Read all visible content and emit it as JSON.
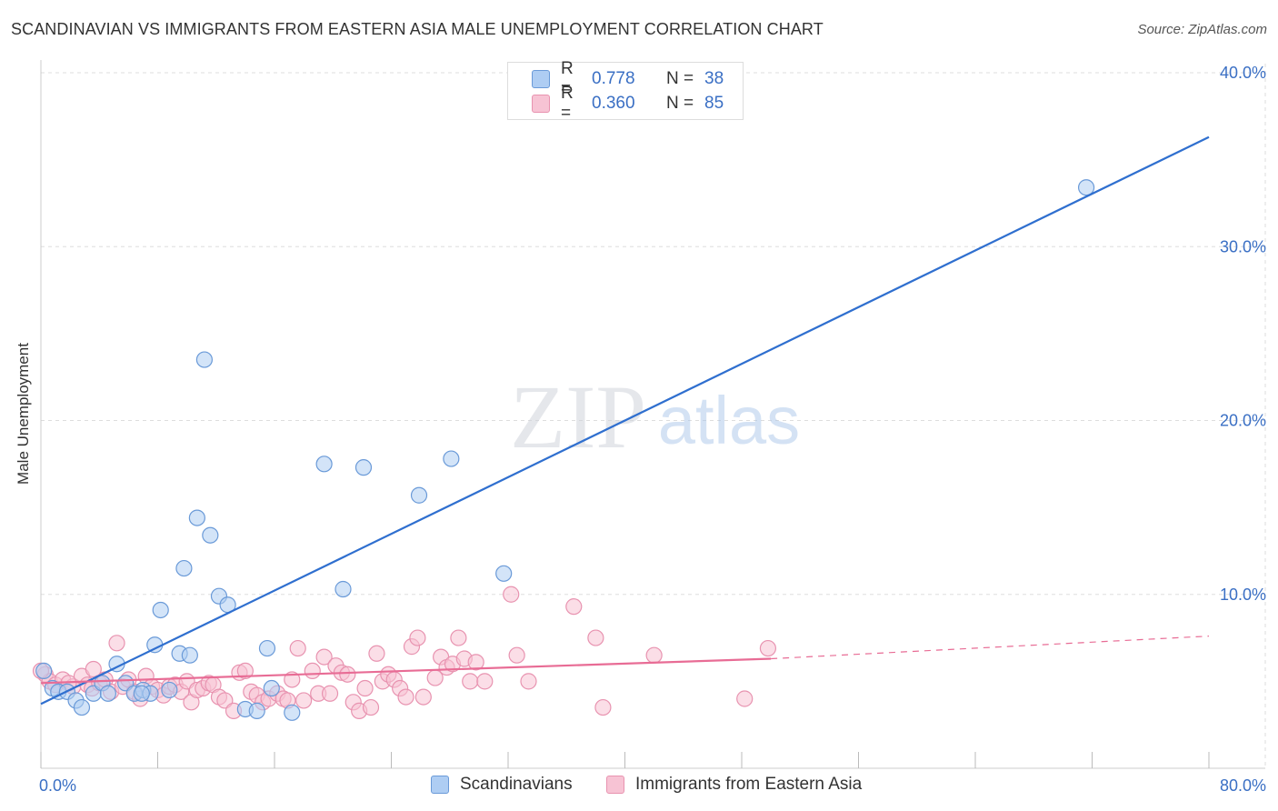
{
  "header": {
    "title": "SCANDINAVIAN VS IMMIGRANTS FROM EASTERN ASIA MALE UNEMPLOYMENT CORRELATION CHART",
    "source": "Source: ZipAtlas.com"
  },
  "watermark": {
    "zip": "ZIP",
    "atlas": "atlas"
  },
  "legend_top": {
    "rows": [
      {
        "r_label": "R =",
        "r_value": "0.778",
        "n_label": "N =",
        "n_value": "38"
      },
      {
        "r_label": "R =",
        "r_value": "0.360",
        "n_label": "N =",
        "n_value": "85"
      }
    ]
  },
  "legend_bottom": {
    "items": [
      {
        "label": "Scandinavians"
      },
      {
        "label": "Immigrants from Eastern Asia"
      }
    ]
  },
  "colors": {
    "blue_line": "#2f6fcf",
    "blue_fill": "#aecdf3",
    "blue_stroke": "#6a9ad8",
    "pink_line": "#e86c95",
    "pink_fill": "#f7c3d4",
    "pink_stroke": "#e893b0",
    "tick_label": "#3a6fc4",
    "grid": "#dddddd"
  },
  "chart_data": {
    "type": "scatter",
    "title": "SCANDINAVIAN VS IMMIGRANTS FROM EASTERN ASIA MALE UNEMPLOYMENT CORRELATION CHART",
    "xlabel": "",
    "ylabel": "Male Unemployment",
    "xlim": [
      0,
      80
    ],
    "ylim": [
      0,
      40
    ],
    "x_tick_labels": [
      "0.0%",
      "80.0%"
    ],
    "y_ticks": [
      10,
      20,
      30,
      40
    ],
    "y_tick_labels": [
      "10.0%",
      "20.0%",
      "30.0%",
      "40.0%"
    ],
    "grid": true,
    "series": [
      {
        "name": "Scandinavians",
        "r": 0.778,
        "n": 38,
        "trend": {
          "x0": 0,
          "y0": 3.7,
          "x1": 80,
          "y1": 36.3
        },
        "points": [
          [
            0.2,
            5.6
          ],
          [
            0.8,
            4.6
          ],
          [
            1.2,
            4.4
          ],
          [
            1.8,
            4.4
          ],
          [
            2.4,
            3.9
          ],
          [
            2.8,
            3.5
          ],
          [
            3.6,
            4.3
          ],
          [
            4.2,
            4.9
          ],
          [
            4.6,
            4.3
          ],
          [
            5.2,
            6.0
          ],
          [
            5.8,
            4.9
          ],
          [
            6.4,
            4.3
          ],
          [
            7.0,
            4.5
          ],
          [
            7.5,
            4.3
          ],
          [
            7.8,
            7.1
          ],
          [
            8.2,
            9.1
          ],
          [
            8.8,
            4.5
          ],
          [
            9.5,
            6.6
          ],
          [
            9.8,
            11.5
          ],
          [
            10.2,
            6.5
          ],
          [
            10.7,
            14.4
          ],
          [
            11.2,
            23.5
          ],
          [
            11.6,
            13.4
          ],
          [
            12.2,
            9.9
          ],
          [
            12.8,
            9.4
          ],
          [
            14.0,
            3.4
          ],
          [
            14.8,
            3.3
          ],
          [
            15.5,
            6.9
          ],
          [
            15.8,
            4.6
          ],
          [
            17.2,
            3.2
          ],
          [
            19.4,
            17.5
          ],
          [
            20.7,
            10.3
          ],
          [
            22.1,
            17.3
          ],
          [
            25.9,
            15.7
          ],
          [
            28.1,
            17.8
          ],
          [
            31.7,
            11.2
          ],
          [
            71.6,
            33.4
          ],
          [
            6.9,
            4.3
          ]
        ]
      },
      {
        "name": "Immigrants from Eastern Asia",
        "r": 0.36,
        "n": 85,
        "trend": {
          "x0": 0,
          "y0": 4.9,
          "x1": 50,
          "y1": 6.3
        },
        "trend_extension": {
          "x0": 50,
          "y0": 6.3,
          "x1": 80,
          "y1": 7.6
        },
        "points": [
          [
            0.3,
            5.4
          ],
          [
            0.6,
            5.0
          ],
          [
            1.0,
            4.8
          ],
          [
            1.5,
            5.1
          ],
          [
            2.2,
            4.7
          ],
          [
            2.8,
            5.3
          ],
          [
            3.2,
            4.8
          ],
          [
            3.5,
            4.6
          ],
          [
            3.6,
            5.7
          ],
          [
            4.0,
            4.9
          ],
          [
            4.4,
            5.1
          ],
          [
            4.8,
            4.4
          ],
          [
            5.2,
            7.2
          ],
          [
            5.6,
            4.7
          ],
          [
            6.0,
            5.1
          ],
          [
            6.4,
            4.4
          ],
          [
            6.8,
            4.0
          ],
          [
            7.2,
            5.3
          ],
          [
            7.6,
            4.7
          ],
          [
            8.0,
            4.5
          ],
          [
            8.4,
            4.2
          ],
          [
            8.8,
            4.7
          ],
          [
            9.2,
            4.8
          ],
          [
            9.6,
            4.4
          ],
          [
            10.0,
            5.0
          ],
          [
            10.3,
            3.8
          ],
          [
            10.7,
            4.5
          ],
          [
            11.1,
            4.6
          ],
          [
            11.5,
            4.9
          ],
          [
            11.8,
            4.8
          ],
          [
            12.2,
            4.1
          ],
          [
            12.6,
            3.9
          ],
          [
            13.2,
            3.3
          ],
          [
            13.6,
            5.5
          ],
          [
            14.0,
            5.6
          ],
          [
            14.4,
            4.4
          ],
          [
            14.8,
            4.2
          ],
          [
            15.2,
            3.8
          ],
          [
            15.6,
            4.0
          ],
          [
            16.2,
            4.3
          ],
          [
            16.6,
            4.0
          ],
          [
            16.9,
            3.9
          ],
          [
            17.2,
            5.1
          ],
          [
            17.6,
            6.9
          ],
          [
            18.0,
            3.9
          ],
          [
            18.6,
            5.6
          ],
          [
            19.0,
            4.3
          ],
          [
            19.4,
            6.4
          ],
          [
            19.8,
            4.3
          ],
          [
            20.2,
            5.9
          ],
          [
            20.6,
            5.5
          ],
          [
            21.0,
            5.4
          ],
          [
            21.4,
            3.8
          ],
          [
            21.8,
            3.3
          ],
          [
            22.2,
            4.6
          ],
          [
            22.6,
            3.5
          ],
          [
            23.0,
            6.6
          ],
          [
            23.4,
            5.0
          ],
          [
            23.8,
            5.4
          ],
          [
            24.2,
            5.1
          ],
          [
            24.6,
            4.6
          ],
          [
            25.0,
            4.1
          ],
          [
            25.4,
            7.0
          ],
          [
            25.8,
            7.5
          ],
          [
            26.2,
            4.1
          ],
          [
            27.0,
            5.2
          ],
          [
            27.4,
            6.4
          ],
          [
            27.8,
            5.8
          ],
          [
            28.2,
            6.0
          ],
          [
            28.6,
            7.5
          ],
          [
            29.0,
            6.3
          ],
          [
            29.4,
            5.0
          ],
          [
            29.8,
            6.1
          ],
          [
            30.4,
            5.0
          ],
          [
            32.2,
            10.0
          ],
          [
            32.6,
            6.5
          ],
          [
            33.4,
            5.0
          ],
          [
            36.5,
            9.3
          ],
          [
            38.0,
            7.5
          ],
          [
            38.5,
            3.5
          ],
          [
            42.0,
            6.5
          ],
          [
            48.2,
            4.0
          ],
          [
            49.8,
            6.9
          ],
          [
            0.0,
            5.6
          ],
          [
            1.9,
            4.9
          ]
        ]
      }
    ]
  }
}
